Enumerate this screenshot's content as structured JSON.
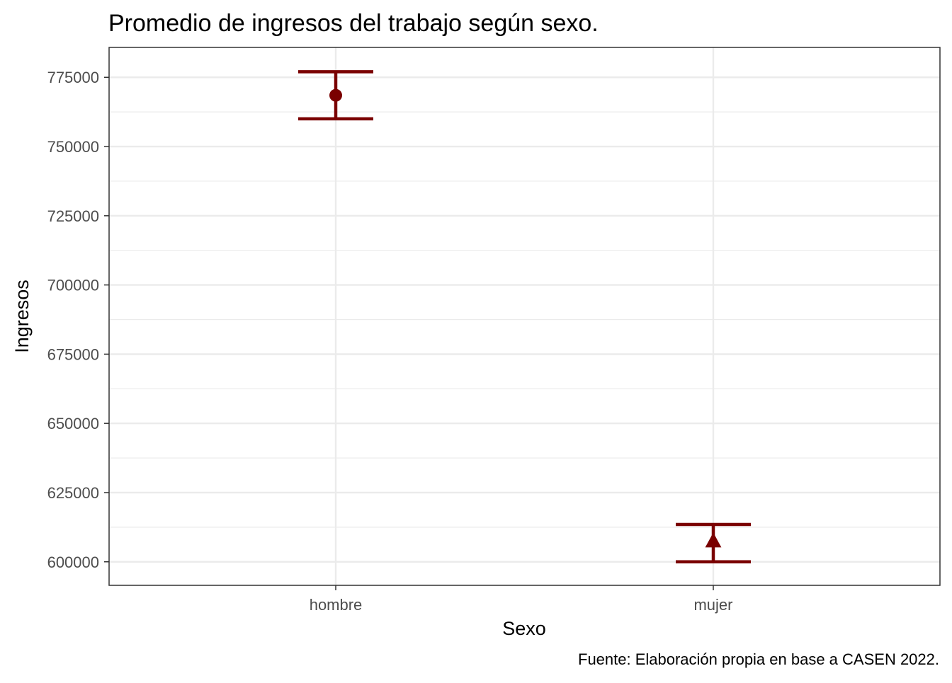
{
  "chart_data": {
    "type": "errorbar",
    "title": "Promedio de ingresos del trabajo según sexo.",
    "xlabel": "Sexo",
    "ylabel": "Ingresos",
    "caption": "Fuente: Elaboración propia en base a CASEN 2022.",
    "categories": [
      "hombre",
      "mujer"
    ],
    "points": [
      {
        "category": "hombre",
        "mean": 768500,
        "lower": 760000,
        "upper": 777000,
        "shape": "circle"
      },
      {
        "category": "mujer",
        "mean": 607500,
        "lower": 600000,
        "upper": 613500,
        "shape": "triangle"
      }
    ],
    "yticks": [
      600000,
      625000,
      650000,
      675000,
      700000,
      725000,
      750000,
      775000
    ],
    "ytick_labels": [
      "600000",
      "625000",
      "650000",
      "675000",
      "700000",
      "725000",
      "750000",
      "775000"
    ],
    "ylim": [
      591500,
      785800
    ],
    "grid": true,
    "legend": "none",
    "colors": {
      "series": "#7a0000",
      "grid": "#ebebeb",
      "panel_border": "#333333",
      "tick_text": "#4d4d4d"
    }
  }
}
